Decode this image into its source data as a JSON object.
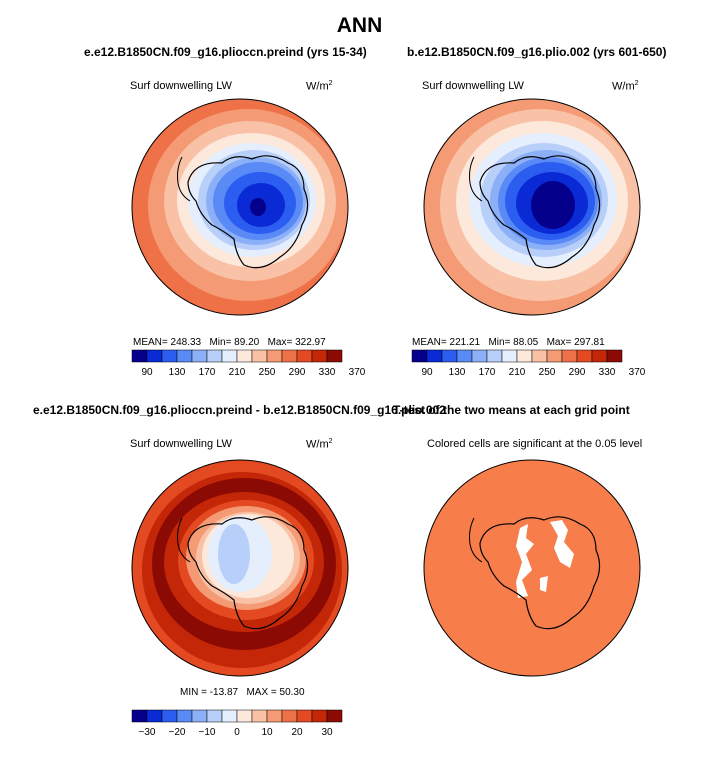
{
  "page_title": "ANN",
  "chart_data": [
    {
      "type": "heatmap",
      "title": "e.e12.B1850CN.f09_g16.plioccn.preind (yrs 15-34)",
      "variable": "Surf downwelling LW",
      "units": "W/m",
      "units_exp": "2",
      "stats": {
        "mean": "MEAN= 248.33",
        "min": "Min= 89.20",
        "max": "Max= 322.97"
      },
      "colorbar": {
        "colors": [
          "#04008c",
          "#0a2ad6",
          "#2b5ef0",
          "#5a8af5",
          "#8bb0f7",
          "#b8cff9",
          "#e4eefc",
          "#fde8dc",
          "#f9c2a6",
          "#f49a74",
          "#ef7148",
          "#e34a22",
          "#c42608",
          "#8c0a04"
        ],
        "labels": [
          "90",
          "130",
          "170",
          "210",
          "250",
          "290",
          "330",
          "370"
        ]
      },
      "projection": "south polar stereographic"
    },
    {
      "type": "heatmap",
      "title": "b.e12.B1850CN.f09_g16.plio.002 (yrs 601-650)",
      "variable": "Surf downwelling LW",
      "units": "W/m",
      "units_exp": "2",
      "stats": {
        "mean": "MEAN= 221.21",
        "min": "Min= 88.05",
        "max": "Max= 297.81"
      },
      "colorbar": {
        "colors": [
          "#04008c",
          "#0a2ad6",
          "#2b5ef0",
          "#5a8af5",
          "#8bb0f7",
          "#b8cff9",
          "#e4eefc",
          "#fde8dc",
          "#f9c2a6",
          "#f49a74",
          "#ef7148",
          "#e34a22",
          "#c42608",
          "#8c0a04"
        ],
        "labels": [
          "90",
          "130",
          "170",
          "210",
          "250",
          "290",
          "330",
          "370"
        ]
      },
      "projection": "south polar stereographic"
    },
    {
      "type": "heatmap",
      "title": "e.e12.B1850CN.f09_g16.plioccn.preind - b.e12.B1850CN.f09_g16.plio.002",
      "variable": "Surf downwelling LW",
      "units": "W/m",
      "units_exp": "2",
      "stats": {
        "min": "MIN = -13.87",
        "max": "MAX = 50.30"
      },
      "colorbar": {
        "colors": [
          "#04008c",
          "#0a2ad6",
          "#2b5ef0",
          "#5a8af5",
          "#8bb0f7",
          "#b8cff9",
          "#e4eefc",
          "#fde8dc",
          "#f9c2a6",
          "#f49a74",
          "#ef7148",
          "#e34a22",
          "#c42608",
          "#8c0a04"
        ],
        "labels": [
          "−30",
          "−20",
          "−10",
          "0",
          "10",
          "20",
          "30"
        ]
      },
      "projection": "south polar stereographic"
    },
    {
      "type": "heatmap",
      "title": "T-test of the two means at each grid point",
      "subtitle": "Colored cells are significant at the 0.05 level",
      "projection": "south polar stereographic"
    }
  ],
  "colors": {
    "sig": "#f77e4a",
    "coast": "#000000"
  }
}
